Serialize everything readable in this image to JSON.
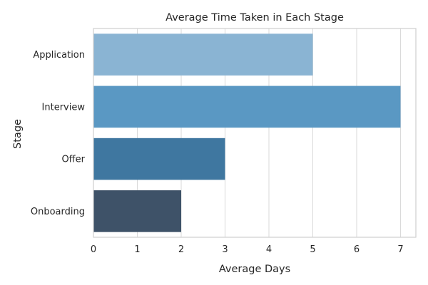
{
  "chart_data": {
    "type": "bar",
    "orientation": "horizontal",
    "title": "Average Time Taken in Each Stage",
    "xlabel": "Average Days",
    "ylabel": "Stage",
    "categories": [
      "Application",
      "Interview",
      "Offer",
      "Onboarding"
    ],
    "values": [
      5,
      7,
      3,
      2
    ],
    "colors": [
      "#8ab4d3",
      "#5a98c3",
      "#3f77a0",
      "#3e5268"
    ],
    "xlim": [
      0,
      7.35
    ],
    "xticks": [
      "0",
      "1",
      "2",
      "3",
      "4",
      "5",
      "6",
      "7"
    ],
    "grid": true,
    "legend": "none"
  }
}
